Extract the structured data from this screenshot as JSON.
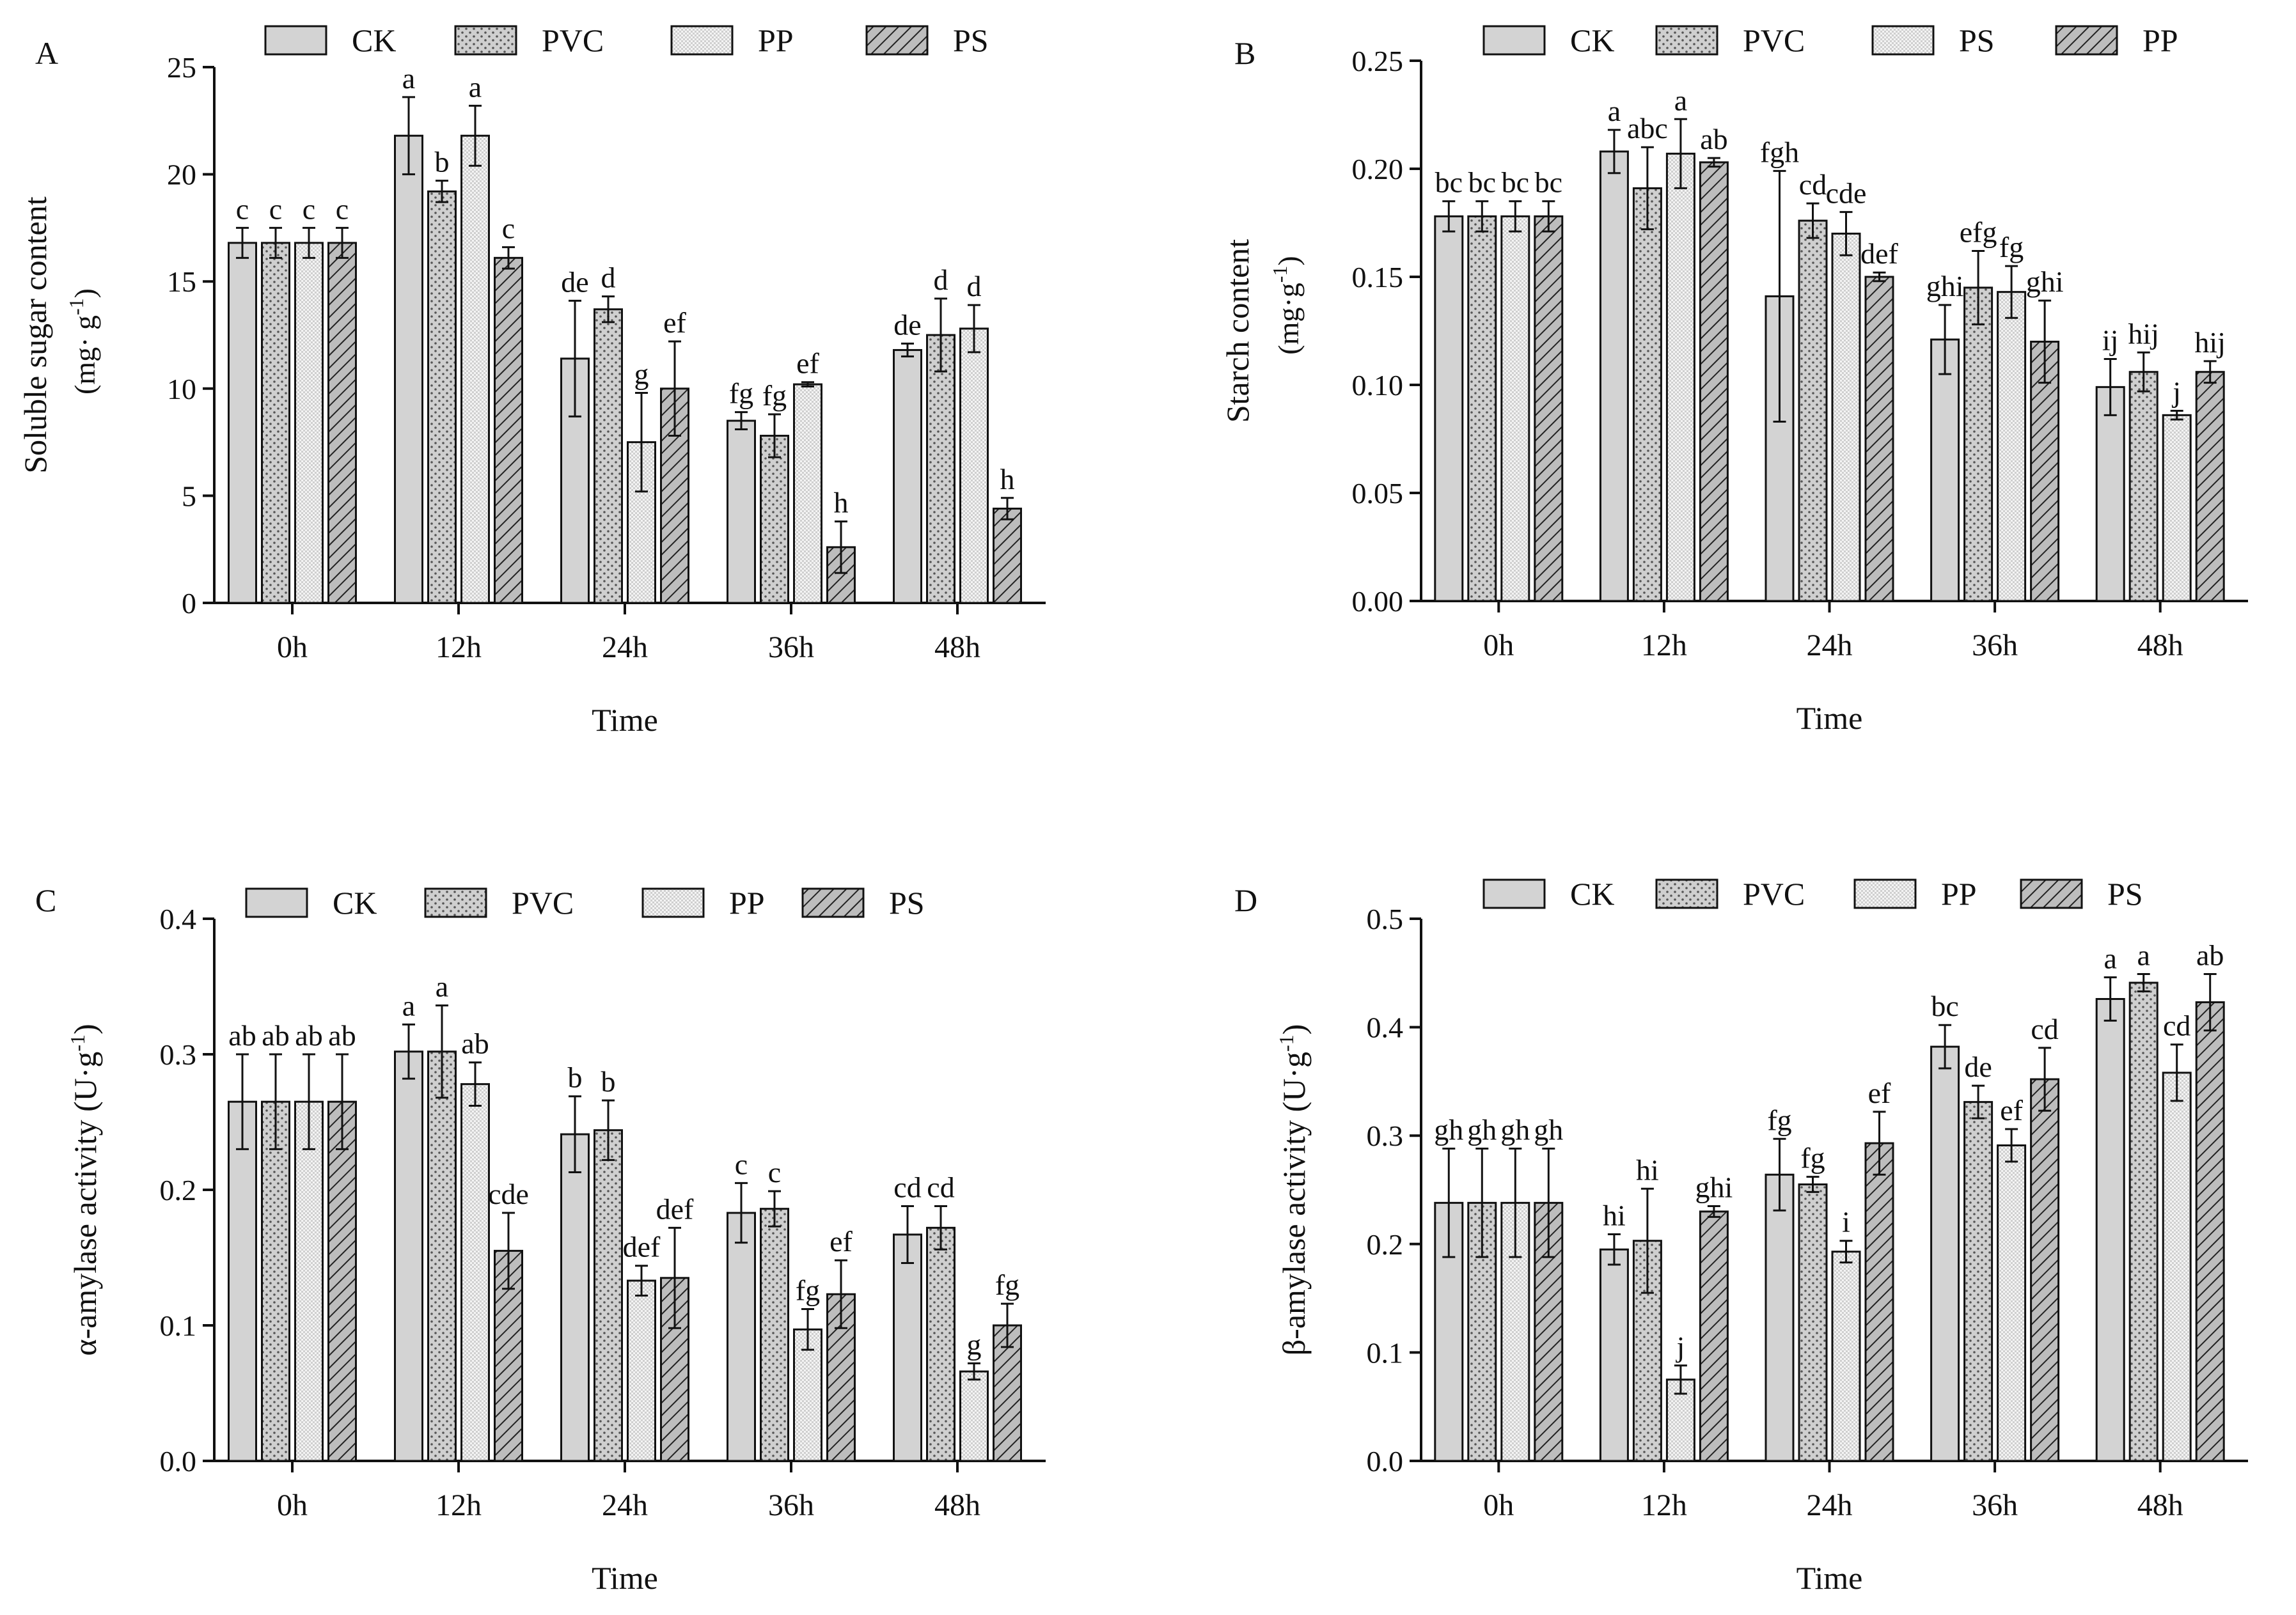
{
  "figure": {
    "legend_labels_entries_note": "",
    "patterns": {
      "CK": "solid",
      "PVC": "dots",
      "PP": "fine",
      "PS": "hatch"
    }
  },
  "chart_data": [
    {
      "panel_label": "A",
      "type": "bar",
      "title": "",
      "xlabel": "Time",
      "ylabel_main": "Soluble sugar content",
      "ylabel_unit": "(mg· g",
      "ylabel_sup": "-1",
      "ylabel_close": ")",
      "ylim": [
        0,
        25
      ],
      "yticks": [
        0,
        5,
        10,
        15,
        20,
        25
      ],
      "ytick_labels": [
        "0",
        "5",
        "10",
        "15",
        "20",
        "25"
      ],
      "categories": [
        "0h",
        "12h",
        "24h",
        "36h",
        "48h"
      ],
      "legend": [
        "CK",
        "PVC",
        "PP",
        "PS"
      ],
      "series_patterns": [
        "solid",
        "dots",
        "fine",
        "hatch"
      ],
      "series": [
        {
          "name": "CK",
          "values": [
            16.8,
            21.8,
            11.4,
            8.5,
            11.8
          ],
          "errors": [
            0.7,
            1.8,
            2.7,
            0.4,
            0.3
          ],
          "letters": [
            "c",
            "a",
            "de",
            "fg",
            "de"
          ]
        },
        {
          "name": "PVC",
          "values": [
            16.8,
            19.2,
            13.7,
            7.8,
            12.5
          ],
          "errors": [
            0.7,
            0.5,
            0.6,
            1.0,
            1.7
          ],
          "letters": [
            "c",
            "b",
            "d",
            "fg",
            "d"
          ]
        },
        {
          "name": "PP",
          "values": [
            16.8,
            21.8,
            7.5,
            10.2,
            12.8
          ],
          "errors": [
            0.7,
            1.4,
            2.3,
            0.1,
            1.1
          ],
          "letters": [
            "c",
            "a",
            "g",
            "ef",
            "d"
          ]
        },
        {
          "name": "PS",
          "values": [
            16.8,
            16.1,
            10.0,
            2.6,
            4.4
          ],
          "errors": [
            0.7,
            0.5,
            2.2,
            1.2,
            0.5
          ],
          "letters": [
            "c",
            "c",
            "ef",
            "h",
            "h"
          ]
        }
      ]
    },
    {
      "panel_label": "B",
      "type": "bar",
      "title": "",
      "xlabel": "Time",
      "ylabel_main": "Starch content",
      "ylabel_unit": "(mg·g",
      "ylabel_sup": "-1",
      "ylabel_close": ")",
      "ylim": [
        0,
        0.25
      ],
      "yticks": [
        0,
        0.05,
        0.1,
        0.15,
        0.2,
        0.25
      ],
      "ytick_labels": [
        "0.00",
        "0.05",
        "0.10",
        "0.15",
        "0.20",
        "0.25"
      ],
      "categories": [
        "0h",
        "12h",
        "24h",
        "36h",
        "48h"
      ],
      "legend": [
        "CK",
        "PVC",
        "PS",
        "PP"
      ],
      "series_patterns": [
        "solid",
        "dots",
        "fine",
        "hatch"
      ],
      "series": [
        {
          "name": "CK",
          "values": [
            0.178,
            0.208,
            0.141,
            0.121,
            0.099
          ],
          "errors": [
            0.007,
            0.01,
            0.058,
            0.016,
            0.013
          ],
          "letters": [
            "bc",
            "a",
            "fgh",
            "ghi",
            "ij"
          ]
        },
        {
          "name": "PVC",
          "values": [
            0.178,
            0.191,
            0.176,
            0.145,
            0.106
          ],
          "errors": [
            0.007,
            0.019,
            0.008,
            0.017,
            0.009
          ],
          "letters": [
            "bc",
            "abc",
            "cd",
            "efg",
            "hij"
          ]
        },
        {
          "name": "PS",
          "values": [
            0.178,
            0.207,
            0.17,
            0.143,
            0.086
          ],
          "errors": [
            0.007,
            0.016,
            0.01,
            0.012,
            0.002
          ],
          "letters": [
            "bc",
            "a",
            "cde",
            "fg",
            "j"
          ]
        },
        {
          "name": "PP",
          "values": [
            0.178,
            0.203,
            0.15,
            0.12,
            0.106
          ],
          "errors": [
            0.007,
            0.002,
            0.002,
            0.019,
            0.005
          ],
          "letters": [
            "bc",
            "ab",
            "def",
            "ghi",
            "hij"
          ]
        }
      ]
    },
    {
      "panel_label": "C",
      "type": "bar",
      "title": "",
      "xlabel": "Time",
      "ylabel_main": "α-amylase activity",
      "ylabel_unit": "(U·g",
      "ylabel_sup": "-1",
      "ylabel_close": ")",
      "ylim": [
        0,
        0.4
      ],
      "yticks": [
        0,
        0.1,
        0.2,
        0.3,
        0.4
      ],
      "ytick_labels": [
        "0.0",
        "0.1",
        "0.2",
        "0.3",
        "0.4"
      ],
      "categories": [
        "0h",
        "12h",
        "24h",
        "36h",
        "48h"
      ],
      "legend": [
        "CK",
        "PVC",
        "PP",
        "PS"
      ],
      "series_patterns": [
        "solid",
        "dots",
        "fine",
        "hatch"
      ],
      "series": [
        {
          "name": "CK",
          "values": [
            0.265,
            0.302,
            0.241,
            0.183,
            0.167
          ],
          "errors": [
            0.035,
            0.02,
            0.028,
            0.022,
            0.021
          ],
          "letters": [
            "ab",
            "a",
            "b",
            "c",
            "cd"
          ]
        },
        {
          "name": "PVC",
          "values": [
            0.265,
            0.302,
            0.244,
            0.186,
            0.172
          ],
          "errors": [
            0.035,
            0.034,
            0.022,
            0.013,
            0.016
          ],
          "letters": [
            "ab",
            "a",
            "b",
            "c",
            "cd"
          ]
        },
        {
          "name": "PP",
          "values": [
            0.265,
            0.278,
            0.133,
            0.097,
            0.066
          ],
          "errors": [
            0.035,
            0.016,
            0.011,
            0.015,
            0.006
          ],
          "letters": [
            "ab",
            "ab",
            "def",
            "fg",
            "g"
          ]
        },
        {
          "name": "PS",
          "values": [
            0.265,
            0.155,
            0.135,
            0.123,
            0.1
          ],
          "errors": [
            0.035,
            0.028,
            0.037,
            0.025,
            0.016
          ],
          "letters": [
            "ab",
            "cde",
            "def",
            "ef",
            "fg"
          ]
        }
      ]
    },
    {
      "panel_label": "D",
      "type": "bar",
      "title": "",
      "xlabel": "Time",
      "ylabel_main": "β-amylase activity",
      "ylabel_unit": "(U·g",
      "ylabel_sup": "-1",
      "ylabel_close": ")",
      "ylim": [
        0,
        0.5
      ],
      "yticks": [
        0,
        0.1,
        0.2,
        0.3,
        0.4,
        0.5
      ],
      "ytick_labels": [
        "0.0",
        "0.1",
        "0.2",
        "0.3",
        "0.4",
        "0.5"
      ],
      "categories": [
        "0h",
        "12h",
        "24h",
        "36h",
        "48h"
      ],
      "legend": [
        "CK",
        "PVC",
        "PP",
        "PS"
      ],
      "series_patterns": [
        "solid",
        "dots",
        "fine",
        "hatch"
      ],
      "series": [
        {
          "name": "CK",
          "values": [
            0.238,
            0.195,
            0.264,
            0.382,
            0.426
          ],
          "errors": [
            0.05,
            0.014,
            0.033,
            0.02,
            0.02
          ],
          "letters": [
            "gh",
            "hi",
            "fg",
            "bc",
            "a"
          ]
        },
        {
          "name": "PVC",
          "values": [
            0.238,
            0.203,
            0.255,
            0.331,
            0.441
          ],
          "errors": [
            0.05,
            0.048,
            0.007,
            0.015,
            0.008
          ],
          "letters": [
            "gh",
            "hi",
            "fg",
            "de",
            "a"
          ]
        },
        {
          "name": "PP",
          "values": [
            0.238,
            0.075,
            0.193,
            0.291,
            0.358
          ],
          "errors": [
            0.05,
            0.013,
            0.01,
            0.015,
            0.026
          ],
          "letters": [
            "gh",
            "j",
            "i",
            "ef",
            "cd"
          ]
        },
        {
          "name": "PS",
          "values": [
            0.238,
            0.23,
            0.293,
            0.352,
            0.423
          ],
          "errors": [
            0.05,
            0.005,
            0.029,
            0.029,
            0.026
          ],
          "letters": [
            "gh",
            "ghi",
            "ef",
            "cd",
            "ab"
          ]
        }
      ]
    }
  ]
}
